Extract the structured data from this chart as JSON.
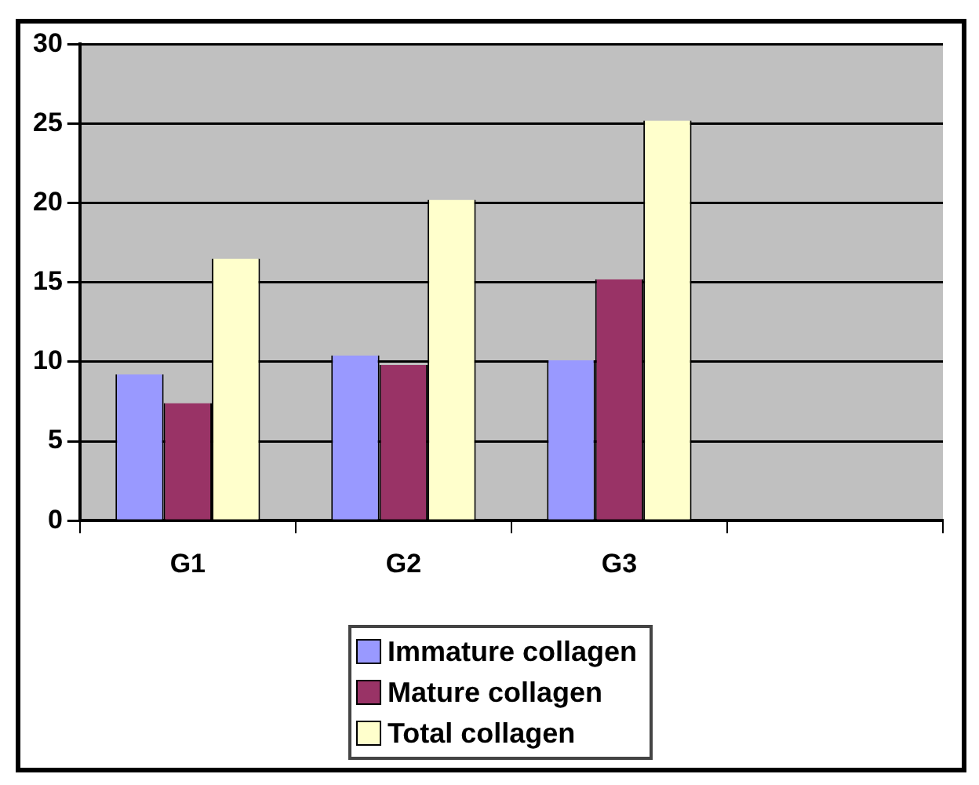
{
  "chart_data": {
    "type": "bar",
    "categories": [
      "G1",
      "G2",
      "G3",
      null
    ],
    "series": [
      {
        "name": "Immature collagen",
        "color": "#9999ff",
        "values": [
          9.2,
          10.4,
          10.1,
          null
        ]
      },
      {
        "name": "Mature collagen",
        "color": "#993366",
        "values": [
          7.4,
          9.8,
          15.2,
          null
        ]
      },
      {
        "name": "Total collagen",
        "color": "#ffffcc",
        "values": [
          16.5,
          20.2,
          25.2,
          null
        ]
      }
    ],
    "ylim": [
      0,
      30
    ],
    "yticks": [
      0,
      5,
      10,
      15,
      20,
      25,
      30
    ],
    "grid": "y",
    "legend": "bottom"
  }
}
